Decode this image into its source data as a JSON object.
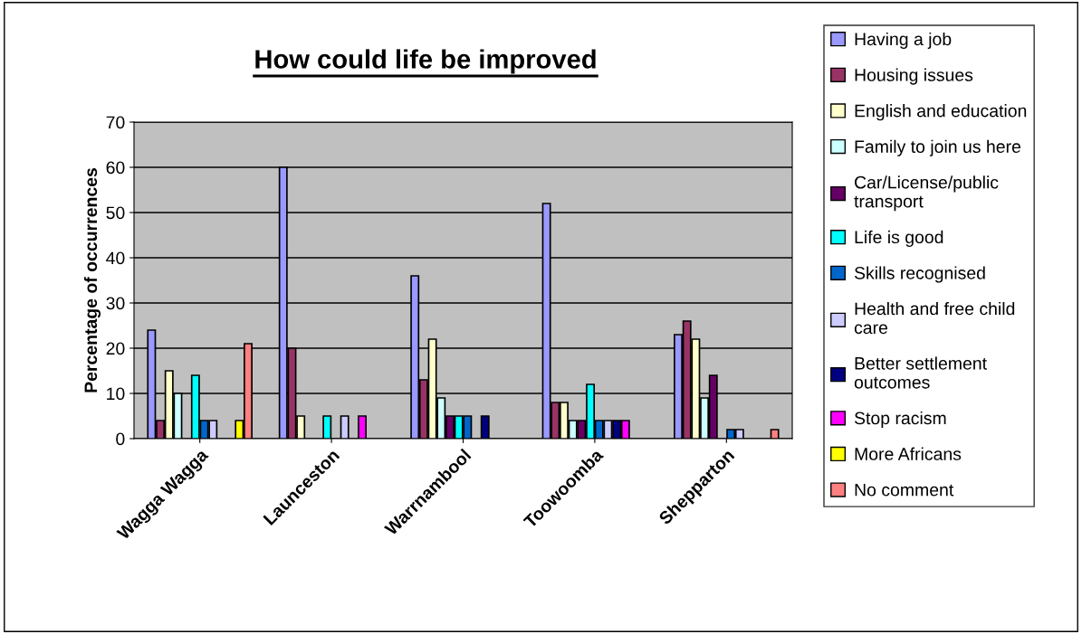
{
  "chart_data": {
    "type": "bar",
    "title": "How could life be improved",
    "ylabel": "Percentage of occurrences",
    "categories": [
      "Wagga Wagga",
      "Launceston",
      "Warrnambool",
      "Toowoomba",
      "Shepparton"
    ],
    "series": [
      {
        "name": "Having a job",
        "color": "#9999ff",
        "values": [
          24,
          60,
          36,
          52,
          23
        ]
      },
      {
        "name": "Housing issues",
        "color": "#993366",
        "values": [
          4,
          20,
          13,
          8,
          26
        ]
      },
      {
        "name": "English and education",
        "color": "#ffffcc",
        "values": [
          15,
          5,
          22,
          8,
          22
        ]
      },
      {
        "name": "Family to join us here",
        "color": "#ccffff",
        "values": [
          10,
          null,
          9,
          4,
          9
        ]
      },
      {
        "name": "Car/License/public transport",
        "color": "#660066",
        "values": [
          null,
          null,
          5,
          4,
          14
        ]
      },
      {
        "name": "Life is good",
        "color": "#00ffff",
        "values": [
          14,
          5,
          5,
          12,
          null
        ]
      },
      {
        "name": "Skills recognised",
        "color": "#0066cc",
        "values": [
          4,
          null,
          5,
          4,
          2
        ]
      },
      {
        "name": "Health and free child care",
        "color": "#ccccff",
        "values": [
          4,
          5,
          null,
          4,
          2
        ]
      },
      {
        "name": "Better settlement outcomes",
        "color": "#000080",
        "values": [
          null,
          null,
          5,
          4,
          null
        ]
      },
      {
        "name": "Stop racism",
        "color": "#ff00ff",
        "values": [
          null,
          5,
          null,
          4,
          null
        ]
      },
      {
        "name": "More Africans",
        "color": "#ffff00",
        "values": [
          4,
          null,
          null,
          null,
          null
        ]
      },
      {
        "name": "No comment",
        "color": "#ff8080",
        "values": [
          21,
          null,
          null,
          null,
          2
        ]
      }
    ],
    "ylim": [
      0,
      70
    ],
    "yticks": [
      0,
      10,
      20,
      30,
      40,
      50,
      60,
      70
    ],
    "grid": "y",
    "legend": "right"
  }
}
